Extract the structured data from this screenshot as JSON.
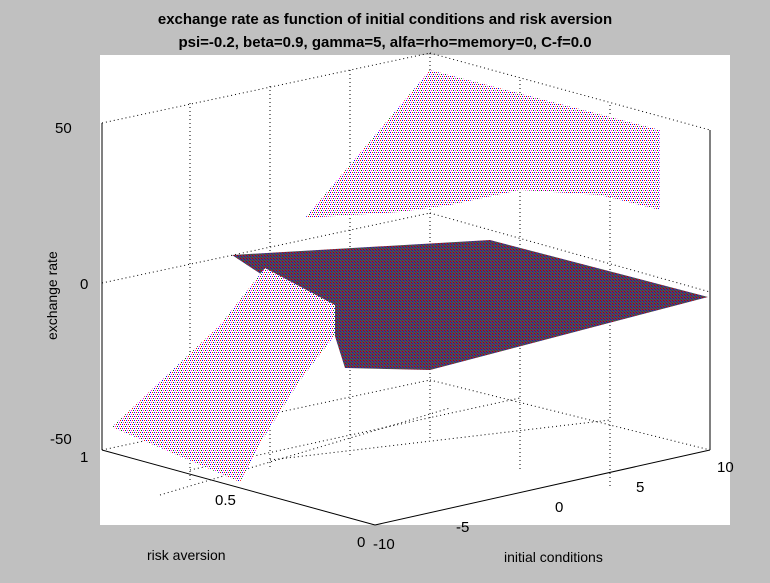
{
  "window": {
    "background": "#c0c0c0",
    "axes_background": "#ffffff"
  },
  "chart_data": {
    "type": "surface",
    "title": "exchange rate as function of initial conditions and risk aversion",
    "subtitle": "psi=-0.2, beta=0.9, gamma=5, alfa=rho=memory=0, C-f=0.0",
    "xlabel": "initial conditions",
    "ylabel": "risk aversion",
    "zlabel": "exchange rate",
    "xlim": [
      -10,
      10
    ],
    "ylim": [
      0,
      1
    ],
    "zlim": [
      -50,
      50
    ],
    "x_ticks": [
      "-10",
      "-5",
      "0",
      "5",
      "10"
    ],
    "y_ticks": [
      "0",
      "0.5",
      "1"
    ],
    "z_ticks": [
      "-50",
      "0",
      "50"
    ],
    "grid": true,
    "colors": [
      "#ff0000",
      "#0000ff",
      "#006400",
      "#ff00ff"
    ],
    "sheets": [
      {
        "name": "",
        "corners": [
          [
            -10,
            1,
            0
          ],
          [
            10,
            0,
            0
          ],
          [
            10,
            0.2,
            0
          ],
          [
            -10,
            0.5,
            0
          ]
        ]
      },
      {
        "name": "",
        "corners": [
          [
            -10,
            1,
            -50
          ],
          [
            -10,
            0.5,
            -50
          ],
          [
            -2,
            0.5,
            -5
          ],
          [
            -2,
            1,
            -5
          ]
        ]
      },
      {
        "name": "",
        "corners": [
          [
            10,
            0.3,
            50
          ],
          [
            10,
            1,
            50
          ],
          [
            3,
            1,
            8
          ],
          [
            3,
            0.3,
            8
          ]
        ]
      }
    ]
  }
}
